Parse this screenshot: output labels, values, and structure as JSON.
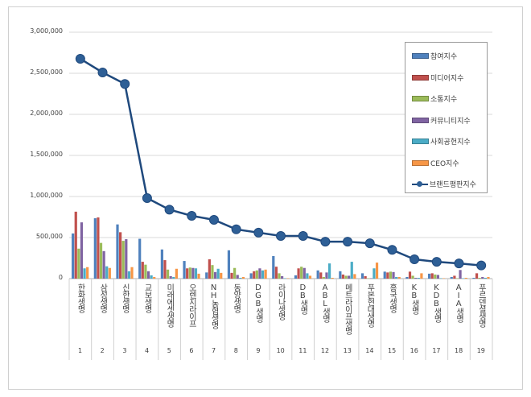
{
  "chart_data": {
    "type": "bar+line",
    "categories": [
      "한화생명",
      "삼성생명",
      "신한생명",
      "교보생명",
      "미래에셋생명",
      "오렌지라이프",
      "NH농협생명",
      "동양생명",
      "DGB생명",
      "라이나생명",
      "DB생명",
      "ABL생명",
      "메트라이프생명",
      "푸본현대생명",
      "흥국생명",
      "KB생명",
      "KDB생명",
      "AIA생명",
      "푸르덴셜생명"
    ],
    "category_numbers": [
      "1",
      "2",
      "3",
      "4",
      "5",
      "6",
      "7",
      "8",
      "9",
      "10",
      "11",
      "12",
      "13",
      "14",
      "15",
      "16",
      "17",
      "18",
      "19"
    ],
    "ylim": [
      0,
      3000000
    ],
    "yticks": [
      0,
      500000,
      1000000,
      1500000,
      2000000,
      2500000,
      3000000
    ],
    "ytick_labels": [
      "0",
      "500,000",
      "1,000,000",
      "1,500,000",
      "2,000,000",
      "2,500,000",
      "3,000,000"
    ],
    "grid": true,
    "legend_position": "top-right",
    "bar_series": [
      {
        "name": "참여지수",
        "color": "#4f81bd",
        "values": [
          550000,
          735000,
          660000,
          485000,
          355000,
          215000,
          75000,
          345000,
          65000,
          275000,
          40000,
          100000,
          90000,
          65000,
          85000,
          20000,
          60000,
          20000,
          10000
        ]
      },
      {
        "name": "미디어지수",
        "color": "#c0504d",
        "values": [
          815000,
          745000,
          565000,
          205000,
          225000,
          125000,
          235000,
          70000,
          90000,
          145000,
          125000,
          75000,
          50000,
          30000,
          75000,
          85000,
          65000,
          35000,
          65000
        ]
      },
      {
        "name": "소통지수",
        "color": "#9bbb59",
        "values": [
          365000,
          435000,
          460000,
          170000,
          110000,
          135000,
          165000,
          130000,
          100000,
          65000,
          145000,
          20000,
          35000,
          5000,
          85000,
          35000,
          50000,
          5000,
          10000
        ]
      },
      {
        "name": "커뮤니티지수",
        "color": "#8064a2",
        "values": [
          685000,
          335000,
          480000,
          90000,
          30000,
          130000,
          80000,
          45000,
          125000,
          30000,
          130000,
          75000,
          35000,
          5000,
          80000,
          10000,
          45000,
          105000,
          20000
        ]
      },
      {
        "name": "사회공헌지수",
        "color": "#4bacc6",
        "values": [
          125000,
          150000,
          90000,
          40000,
          20000,
          125000,
          120000,
          10000,
          100000,
          5000,
          65000,
          185000,
          205000,
          125000,
          20000,
          10000,
          5000,
          5000,
          10000
        ]
      },
      {
        "name": "CEO지수",
        "color": "#f79646",
        "values": [
          140000,
          130000,
          140000,
          20000,
          120000,
          60000,
          70000,
          20000,
          110000,
          5000,
          35000,
          10000,
          55000,
          195000,
          20000,
          65000,
          5000,
          10000,
          20000
        ]
      }
    ],
    "line_series": {
      "name": "브랜드평판지수",
      "color": "#1f497d",
      "values": [
        2676000,
        2510000,
        2370000,
        980000,
        840000,
        765000,
        716000,
        600000,
        560000,
        520000,
        520000,
        450000,
        450000,
        430000,
        350000,
        235000,
        205000,
        185000,
        160000
      ]
    }
  }
}
